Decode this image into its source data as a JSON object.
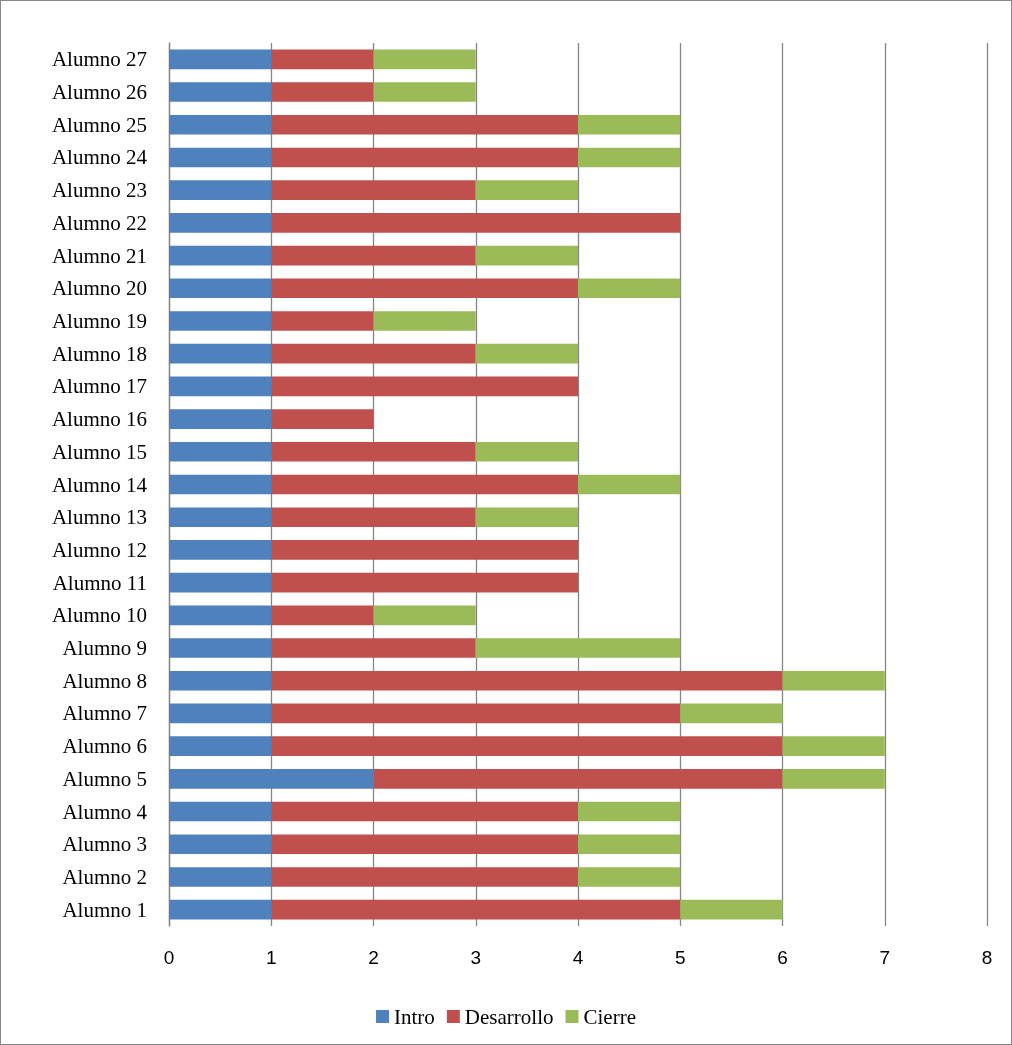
{
  "chart_data": {
    "type": "bar",
    "orientation": "horizontal",
    "stacked": true,
    "categories": [
      "Alumno 27",
      "Alumno 26",
      "Alumno 25",
      "Alumno 24",
      "Alumno 23",
      "Alumno 22",
      "Alumno 21",
      "Alumno 20",
      "Alumno 19",
      "Alumno 18",
      "Alumno 17",
      "Alumno 16",
      "Alumno 15",
      "Alumno 14",
      "Alumno 13",
      "Alumno 12",
      "Alumno 11",
      "Alumno 10",
      "Alumno 9",
      "Alumno 8",
      "Alumno 7",
      "Alumno 6",
      "Alumno 5",
      "Alumno 4",
      "Alumno 3",
      "Alumno 2",
      "Alumno 1"
    ],
    "series": [
      {
        "name": "Intro",
        "color": "#4f81bd",
        "values": [
          1,
          1,
          1,
          1,
          1,
          1,
          1,
          1,
          1,
          1,
          1,
          1,
          1,
          1,
          1,
          1,
          1,
          1,
          1,
          1,
          1,
          1,
          2,
          1,
          1,
          1,
          1
        ]
      },
      {
        "name": "Desarrollo",
        "color": "#c0504d",
        "values": [
          1,
          1,
          3,
          3,
          2,
          4,
          2,
          3,
          1,
          2,
          3,
          1,
          2,
          3,
          2,
          3,
          3,
          1,
          2,
          5,
          4,
          5,
          4,
          3,
          3,
          3,
          4
        ]
      },
      {
        "name": "Cierre",
        "color": "#9bbb59",
        "values": [
          1,
          1,
          1,
          1,
          1,
          0,
          1,
          1,
          1,
          1,
          0,
          0,
          1,
          1,
          1,
          0,
          0,
          1,
          2,
          1,
          1,
          1,
          1,
          1,
          1,
          1,
          1
        ]
      }
    ],
    "xlim": [
      0,
      8
    ],
    "xticks": [
      0,
      1,
      2,
      3,
      4,
      5,
      6,
      7,
      8
    ],
    "grid": "x",
    "legend": "bottom"
  }
}
